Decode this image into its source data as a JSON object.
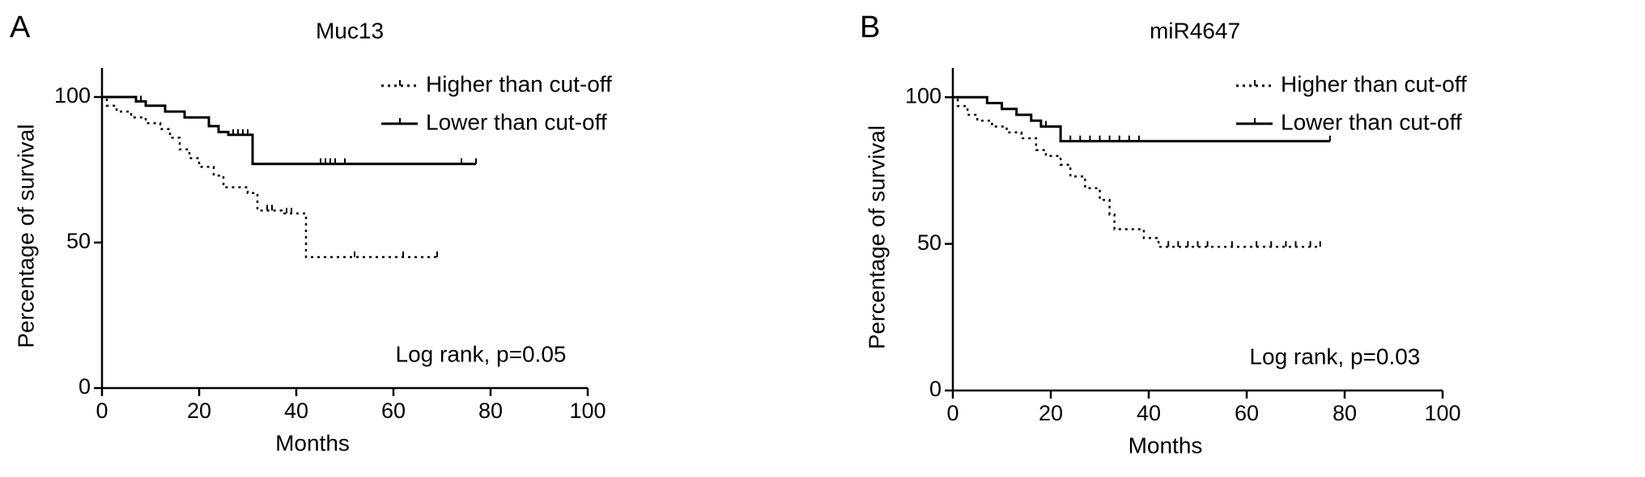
{
  "chart_data": [
    {
      "type": "step",
      "panel": "A",
      "title": "Muc13",
      "xlabel": "Months",
      "ylabel": "Percentage of survival",
      "annotation": "Log rank, p=0.05",
      "xlim": [
        0,
        100
      ],
      "xticks": [
        0,
        20,
        40,
        60,
        80,
        100
      ],
      "ylim": [
        0,
        110
      ],
      "yticks": [
        0,
        50,
        100
      ],
      "legend": "upper right",
      "series": [
        {
          "name": "Higher than cut-off",
          "color": "#000000",
          "dash": "dotted",
          "x": [
            0,
            1,
            3,
            6,
            9,
            12,
            14,
            16,
            18,
            20,
            23,
            25,
            30,
            32,
            37,
            42,
            69
          ],
          "values": [
            100,
            97,
            95,
            93,
            91,
            89,
            86,
            82,
            79,
            76,
            73,
            69,
            67,
            61,
            60,
            45,
            45
          ],
          "censored": [
            34,
            35,
            38,
            39,
            52,
            62,
            69
          ]
        },
        {
          "name": "Lower than cut-off",
          "color": "#000000",
          "dash": "solid",
          "x": [
            0,
            7,
            9,
            13,
            17,
            22,
            24,
            26,
            31,
            77
          ],
          "values": [
            100,
            98.5,
            97,
            95,
            93,
            90,
            88,
            87,
            77,
            77
          ],
          "censored": [
            8,
            27,
            28,
            29,
            30,
            45,
            46,
            47,
            48,
            50,
            74,
            77
          ]
        }
      ]
    },
    {
      "type": "step",
      "panel": "B",
      "title": "miR4647",
      "xlabel": "Months",
      "ylabel": "Percentage of survival",
      "annotation": "Log rank, p=0.03",
      "xlim": [
        0,
        100
      ],
      "xticks": [
        0,
        20,
        40,
        60,
        80,
        100
      ],
      "ylim": [
        0,
        110
      ],
      "yticks": [
        0,
        50,
        100
      ],
      "legend": "upper right",
      "series": [
        {
          "name": "Higher than cut-off",
          "color": "#000000",
          "dash": "dotted",
          "x": [
            0,
            1,
            3,
            5,
            8,
            11,
            14,
            17,
            19,
            22,
            24,
            27,
            30,
            32,
            33,
            39,
            42,
            75
          ],
          "values": [
            100,
            97,
            94,
            92,
            90,
            88,
            86,
            82,
            80,
            77,
            73,
            69,
            65,
            60,
            55,
            52,
            49,
            49
          ],
          "censored": [
            44,
            46,
            48,
            50,
            52,
            57,
            62,
            65,
            68,
            70,
            73,
            75
          ]
        },
        {
          "name": "Lower than cut-off",
          "color": "#000000",
          "dash": "solid",
          "x": [
            0,
            7,
            10,
            13,
            16,
            18,
            22,
            77
          ],
          "values": [
            100,
            98,
            96,
            94,
            92,
            90,
            85,
            85
          ],
          "censored": [
            7,
            19,
            24,
            26,
            28,
            30,
            32,
            34,
            36,
            38,
            77
          ]
        }
      ]
    }
  ]
}
